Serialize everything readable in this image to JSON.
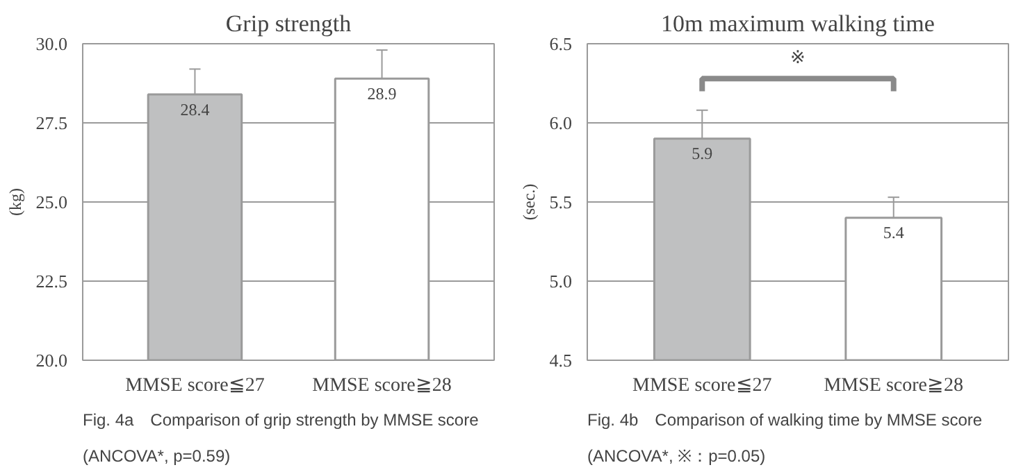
{
  "chart_data": [
    {
      "type": "bar",
      "title": "Grip strength",
      "ylabel": "(kg)",
      "categories": [
        "MMSE score≦27",
        "MMSE score≧28"
      ],
      "values": [
        28.4,
        28.9
      ],
      "colors": [
        "#bfc0c1",
        "#ffffff"
      ],
      "errors": [
        [
          28.4,
          29.2
        ],
        [
          28.9,
          29.8
        ]
      ],
      "data_labels": true,
      "ylim": [
        20.0,
        30.0
      ],
      "yticks": [
        {
          "value": 20,
          "label": "20.0"
        },
        {
          "value": 22.5,
          "label": "22.5"
        },
        {
          "value": 25,
          "label": "25.0"
        },
        {
          "value": 27.5,
          "label": "27.5"
        },
        {
          "value": 30,
          "label": "30.0"
        }
      ],
      "grid": "y",
      "annotations": [
        "Fig. 4a　Comparison of grip strength by MMSE score",
        "(ANCOVA*, p=0.59)"
      ]
    },
    {
      "type": "bar",
      "title": "10m maximum walking time",
      "ylabel": "(sec.)",
      "categories": [
        "MMSE score≦27",
        "MMSE score≧28"
      ],
      "values": [
        5.9,
        5.4
      ],
      "colors": [
        "#bfc0c1",
        "#ffffff"
      ],
      "errors": [
        [
          5.9,
          6.08
        ],
        [
          5.4,
          5.53
        ]
      ],
      "data_labels": true,
      "ylim": [
        4.5,
        6.5
      ],
      "yticks": [
        {
          "value": 4.5,
          "label": "4.5"
        },
        {
          "value": 5,
          "label": "5.0"
        },
        {
          "value": 5.5,
          "label": "5.5"
        },
        {
          "value": 6,
          "label": "6.0"
        },
        {
          "value": 6.5,
          "label": "6.5"
        }
      ],
      "grid": "y",
      "annotations": [
        "※",
        "Fig. 4b　Comparison of walking time by MMSE score",
        "(ANCOVA*, ※：p=0.05)"
      ]
    }
  ]
}
